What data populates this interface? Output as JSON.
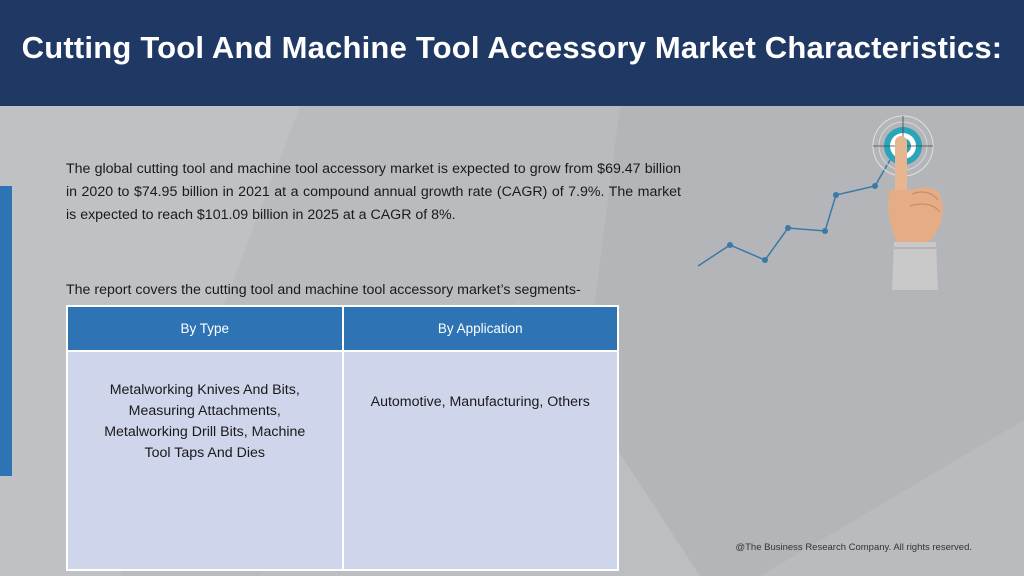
{
  "header": {
    "title": "Cutting Tool And Machine Tool Accessory Market Characteristics:"
  },
  "intro": {
    "paragraph": "The global cutting tool and machine tool accessory market is expected to grow from $69.47 billion in 2020 to $74.95 billion in 2021 at a compound annual growth rate (CAGR) of 7.9%. The market is expected to reach $101.09 billion in 2025 at a CAGR of 8%.",
    "segments_intro": "The report covers the cutting tool and machine tool accessory market’s segments-"
  },
  "segments_table": {
    "columns": [
      "By Type",
      "By Application"
    ],
    "cells": [
      "Metalworking Knives And Bits, Measuring Attachments, Metalworking Drill Bits, Machine Tool Taps And Dies",
      "Automotive, Manufacturing, Others"
    ]
  },
  "footer": {
    "copyright": "@The Business Research Company. All rights reserved."
  },
  "colors": {
    "header_bg": "#1f3864",
    "accent_blue": "#2e74b5",
    "table_body": "#cfd5ea",
    "background": "#b9bbbe"
  },
  "icons": [
    "target-icon",
    "growth-line-icon",
    "pointing-hand-icon"
  ]
}
